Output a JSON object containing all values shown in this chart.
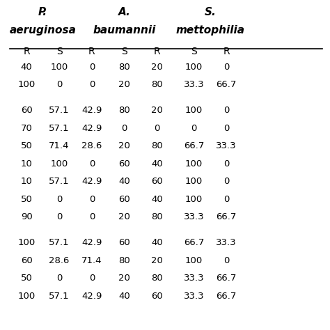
{
  "title_line1": "P.",
  "title_line2": "aeruginosa",
  "title2_line1": "A.",
  "title2_line2": "baumannii",
  "title3_line1": "S.",
  "title3_line2": "mettophilia",
  "col_headers": [
    "R",
    "S",
    "R",
    "S",
    "R",
    "S",
    "R"
  ],
  "rows": [
    [
      "40",
      "100",
      "0",
      "80",
      "20",
      "100",
      "0"
    ],
    [
      "100",
      "0",
      "0",
      "20",
      "80",
      "33.3",
      "66.7"
    ],
    [
      "60",
      "57.1",
      "42.9",
      "80",
      "20",
      "100",
      "0"
    ],
    [
      "70",
      "57.1",
      "42.9",
      "0",
      "0",
      "0",
      "0"
    ],
    [
      "50",
      "71.4",
      "28.6",
      "20",
      "80",
      "66.7",
      "33.3"
    ],
    [
      "10",
      "100",
      "0",
      "60",
      "40",
      "100",
      "0"
    ],
    [
      "10",
      "57.1",
      "42.9",
      "40",
      "60",
      "100",
      "0"
    ],
    [
      "50",
      "0",
      "0",
      "60",
      "40",
      "100",
      "0"
    ],
    [
      "90",
      "0",
      "0",
      "20",
      "80",
      "33.3",
      "66.7"
    ],
    [
      "100",
      "57.1",
      "42.9",
      "60",
      "40",
      "66.7",
      "33.3"
    ],
    [
      "60",
      "28.6",
      "71.4",
      "80",
      "20",
      "100",
      "0"
    ],
    [
      "50",
      "0",
      "0",
      "20",
      "80",
      "33.3",
      "66.7"
    ],
    [
      "100",
      "57.1",
      "42.9",
      "40",
      "60",
      "33.3",
      "66.7"
    ]
  ],
  "blank_after_rows": [
    1,
    1,
    0,
    0,
    0,
    0,
    0,
    1,
    0,
    0,
    0,
    0
  ],
  "bg_color": "#ffffff",
  "font_size": 9.5,
  "header_font_size": 11
}
